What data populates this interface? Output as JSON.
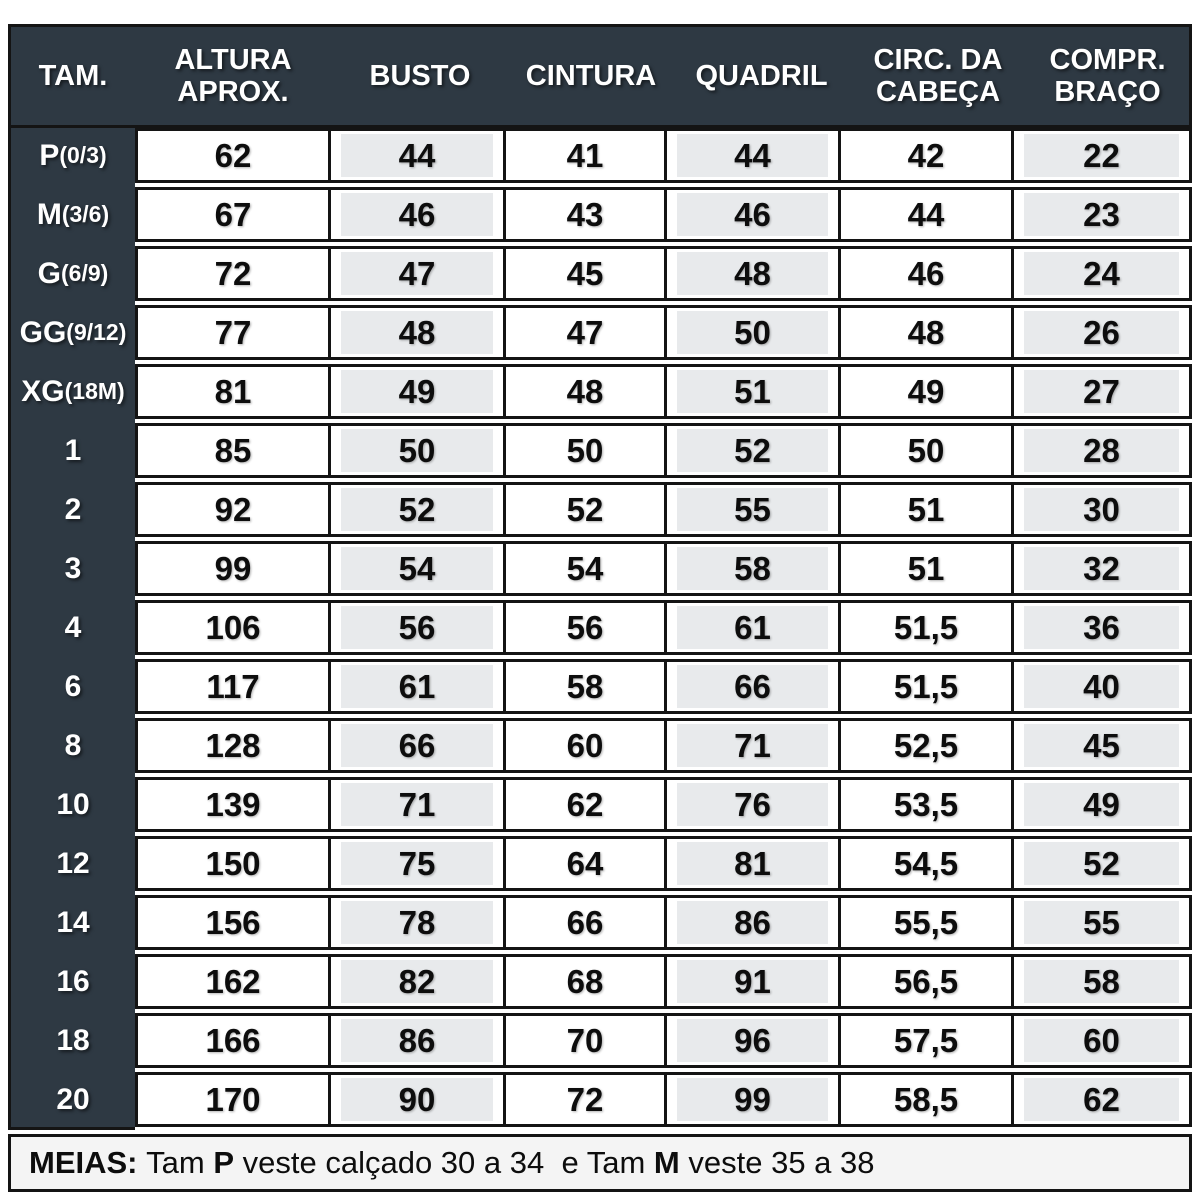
{
  "colors": {
    "dark_bg": "#2e3943",
    "border": "#141414",
    "cell_shade": "#e8eaec",
    "cell_bg": "#ffffff",
    "footer_bg": "#f4f4f4"
  },
  "table": {
    "headers": [
      "TAM.",
      "ALTURA APROX.",
      "BUSTO",
      "CINTURA",
      "QUADRIL",
      "CIRC. DA CABEÇA",
      "COMPR. BRAÇO"
    ],
    "shaded_value_columns": [
      1,
      3,
      5
    ],
    "rows": [
      {
        "size": "P",
        "size_sub": " (0/3)",
        "values": [
          "62",
          "44",
          "41",
          "44",
          "42",
          "22"
        ]
      },
      {
        "size": "M",
        "size_sub": "(3/6)",
        "values": [
          "67",
          "46",
          "43",
          "46",
          "44",
          "23"
        ]
      },
      {
        "size": "G",
        "size_sub": "(6/9)",
        "values": [
          "72",
          "47",
          "45",
          "48",
          "46",
          "24"
        ]
      },
      {
        "size": "GG",
        "size_sub": "(9/12)",
        "values": [
          "77",
          "48",
          "47",
          "50",
          "48",
          "26"
        ]
      },
      {
        "size": "XG",
        "size_sub": "(18M)",
        "values": [
          "81",
          "49",
          "48",
          "51",
          "49",
          "27"
        ]
      },
      {
        "size": "1",
        "size_sub": "",
        "values": [
          "85",
          "50",
          "50",
          "52",
          "50",
          "28"
        ]
      },
      {
        "size": "2",
        "size_sub": "",
        "values": [
          "92",
          "52",
          "52",
          "55",
          "51",
          "30"
        ]
      },
      {
        "size": "3",
        "size_sub": "",
        "values": [
          "99",
          "54",
          "54",
          "58",
          "51",
          "32"
        ]
      },
      {
        "size": "4",
        "size_sub": "",
        "values": [
          "106",
          "56",
          "56",
          "61",
          "51,5",
          "36"
        ]
      },
      {
        "size": "6",
        "size_sub": "",
        "values": [
          "117",
          "61",
          "58",
          "66",
          "51,5",
          "40"
        ]
      },
      {
        "size": "8",
        "size_sub": "",
        "values": [
          "128",
          "66",
          "60",
          "71",
          "52,5",
          "45"
        ]
      },
      {
        "size": "10",
        "size_sub": "",
        "values": [
          "139",
          "71",
          "62",
          "76",
          "53,5",
          "49"
        ]
      },
      {
        "size": "12",
        "size_sub": "",
        "values": [
          "150",
          "75",
          "64",
          "81",
          "54,5",
          "52"
        ]
      },
      {
        "size": "14",
        "size_sub": "",
        "values": [
          "156",
          "78",
          "66",
          "86",
          "55,5",
          "55"
        ]
      },
      {
        "size": "16",
        "size_sub": "",
        "values": [
          "162",
          "82",
          "68",
          "91",
          "56,5",
          "58"
        ]
      },
      {
        "size": "18",
        "size_sub": "",
        "values": [
          "166",
          "86",
          "70",
          "96",
          "57,5",
          "60"
        ]
      },
      {
        "size": "20",
        "size_sub": "",
        "values": [
          "170",
          "90",
          "72",
          "99",
          "58,5",
          "62"
        ]
      }
    ]
  },
  "footer": {
    "segments": [
      {
        "text": "MEIAS:",
        "bold": true
      },
      {
        "text": " Tam ",
        "bold": false
      },
      {
        "text": "P",
        "bold": true
      },
      {
        "text": " veste calçado 30 a 34  e Tam ",
        "bold": false
      },
      {
        "text": "M",
        "bold": true
      },
      {
        "text": " veste 35 a 38",
        "bold": false
      }
    ]
  }
}
